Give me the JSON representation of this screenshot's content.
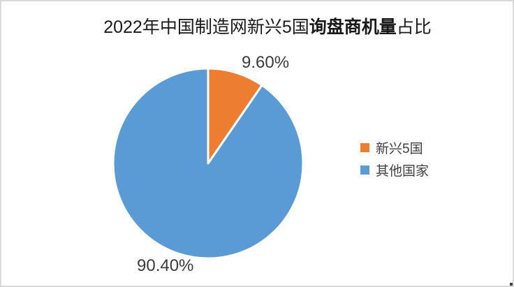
{
  "chart": {
    "title": {
      "prefix": "2022年中国制造网新兴5国",
      "bold": "询盘商机量",
      "suffix": "占比"
    }
  },
  "chart_data": {
    "type": "pie",
    "title": "2022年中国制造网新兴5国询盘商机量占比",
    "categories": [
      "新兴5国",
      "其他国家"
    ],
    "values": [
      9.6,
      90.4
    ],
    "data_labels": [
      "9.60%",
      "90.40%"
    ],
    "colors": [
      "#ED7D31",
      "#5B9BD5"
    ],
    "slice_border_color": "#FFFFFF",
    "start_angle_deg": 0,
    "direction": "clockwise",
    "legend_position": "right",
    "frame_border_color": "#D9D9D9",
    "label_color": "#3B3B3B"
  }
}
